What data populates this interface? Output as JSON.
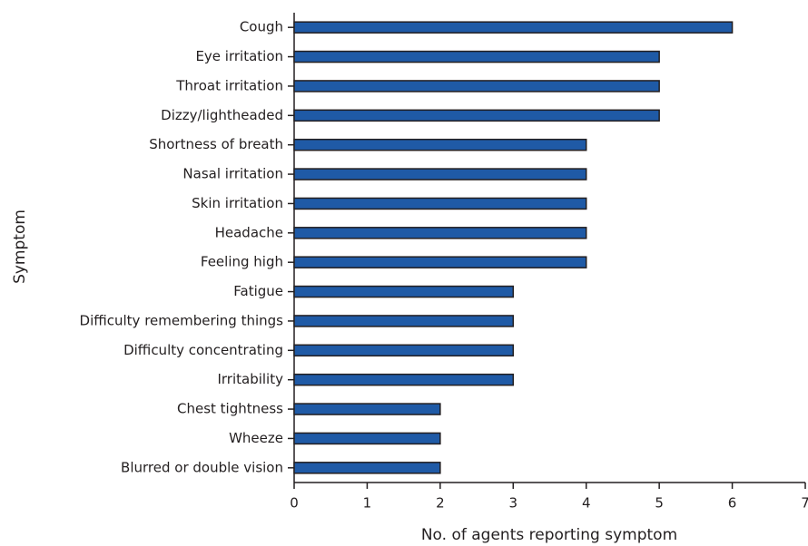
{
  "chart_data": {
    "type": "bar",
    "orientation": "horizontal",
    "x_label": "No. of agents reporting symptom",
    "y_label": "Symptom",
    "categories": [
      "Cough",
      "Eye irritation",
      "Throat irritation",
      "Dizzy/lightheaded",
      "Shortness of breath",
      "Nasal irritation",
      "Skin irritation",
      "Headache",
      "Feeling high",
      "Fatigue",
      "Difficulty remembering things",
      "Difficulty concentrating",
      "Irritability",
      "Chest tightness",
      "Wheeze",
      "Blurred or double vision"
    ],
    "values": [
      6,
      5,
      5,
      5,
      4,
      4,
      4,
      4,
      4,
      3,
      3,
      3,
      3,
      2,
      2,
      2
    ],
    "color": "#1f5aa6",
    "xlim": [
      0,
      7
    ],
    "xticks": [
      0,
      1,
      2,
      3,
      4,
      5,
      6,
      7
    ],
    "grid": false
  }
}
